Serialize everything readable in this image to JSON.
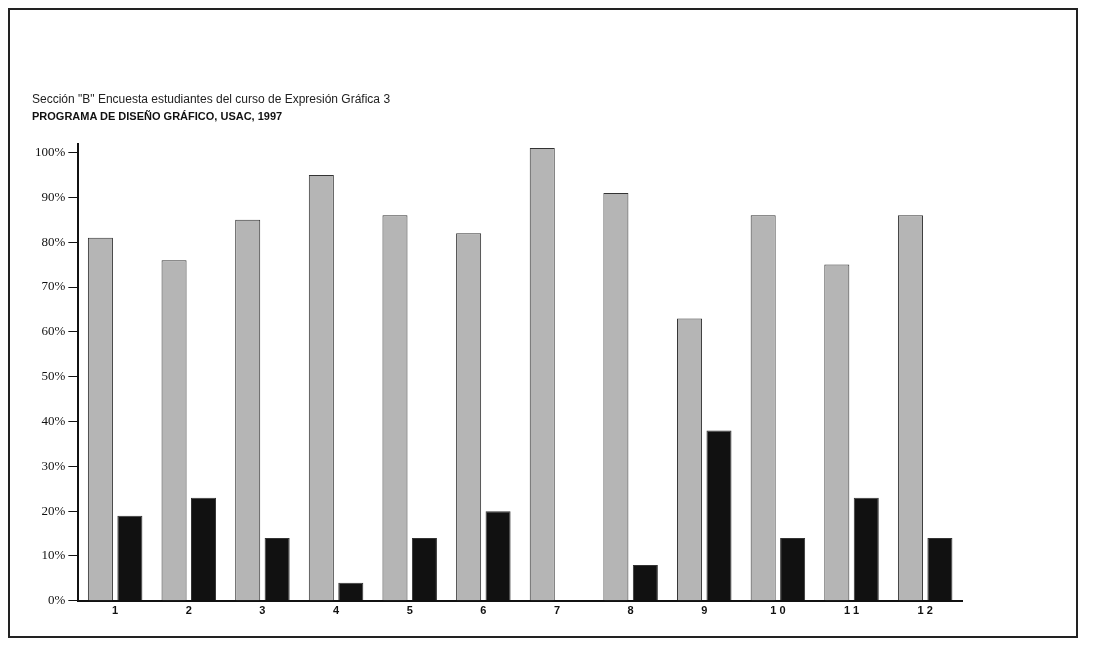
{
  "chart_data": {
    "type": "bar",
    "title": "Sección \"B\" Encuesta estudiantes del curso de Expresión Gráfica 3",
    "subtitle": "PROGRAMA DE DISEÑO GRÁFICO, USAC, 1997",
    "categories": [
      "1",
      "2",
      "3",
      "4",
      "5",
      "6",
      "7",
      "8",
      "9",
      "1 0",
      "1 1",
      "1 2"
    ],
    "series": [
      {
        "color": "#b5b5b5",
        "values": [
          81,
          76,
          85,
          95,
          86,
          82,
          101,
          91,
          63,
          86,
          75,
          86
        ]
      },
      {
        "color": "#111111",
        "values": [
          19,
          23,
          14,
          4,
          14,
          20,
          null,
          8,
          38,
          14,
          23,
          14
        ]
      }
    ],
    "ylim": [
      0,
      102
    ],
    "yticks": [
      {
        "value": 0,
        "label": "0%"
      },
      {
        "value": 10,
        "label": "10%"
      },
      {
        "value": 20,
        "label": "20%"
      },
      {
        "value": 30,
        "label": "30%"
      },
      {
        "value": 40,
        "label": "40%"
      },
      {
        "value": 50,
        "label": "50%"
      },
      {
        "value": 60,
        "label": "60%"
      },
      {
        "value": 70,
        "label": "70%"
      },
      {
        "value": 80,
        "label": "80%"
      },
      {
        "value": 90,
        "label": "90%"
      },
      {
        "value": 100,
        "label": "100%"
      }
    ],
    "grid": false,
    "legend": false
  }
}
